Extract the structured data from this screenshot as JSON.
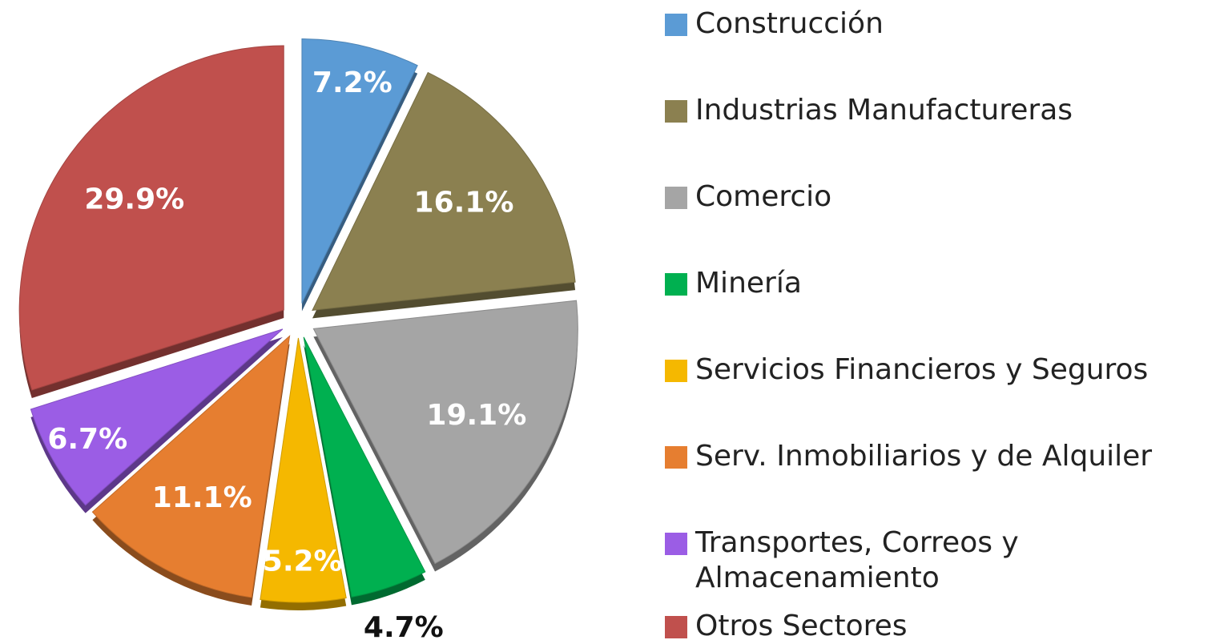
{
  "chart_data": {
    "type": "pie",
    "categories": [
      "Construcción",
      "Industrias Manufactureras",
      "Comercio",
      "Minería",
      "Servicios Financieros y Seguros",
      "Serv. Inmobiliarios y de Alquiler",
      "Transportes, Correos y Almacenamiento",
      "Otros Sectores"
    ],
    "values": [
      7.2,
      16.1,
      19.1,
      4.7,
      5.2,
      11.1,
      6.7,
      29.9
    ],
    "value_labels": [
      "7.2%",
      "16.1%",
      "19.1%",
      "4.7%",
      "5.2%",
      "11.1%",
      "6.7%",
      "29.9%"
    ],
    "colors": [
      "#5b9bd5",
      "#8b8050",
      "#a5a5a5",
      "#00b050",
      "#f5b800",
      "#e67e30",
      "#9b5de5",
      "#c0504d"
    ],
    "label_colors": [
      "#ffffff",
      "#ffffff",
      "#ffffff",
      "#111111",
      "#ffffff",
      "#ffffff",
      "#ffffff",
      "#ffffff"
    ],
    "legend": "right"
  }
}
